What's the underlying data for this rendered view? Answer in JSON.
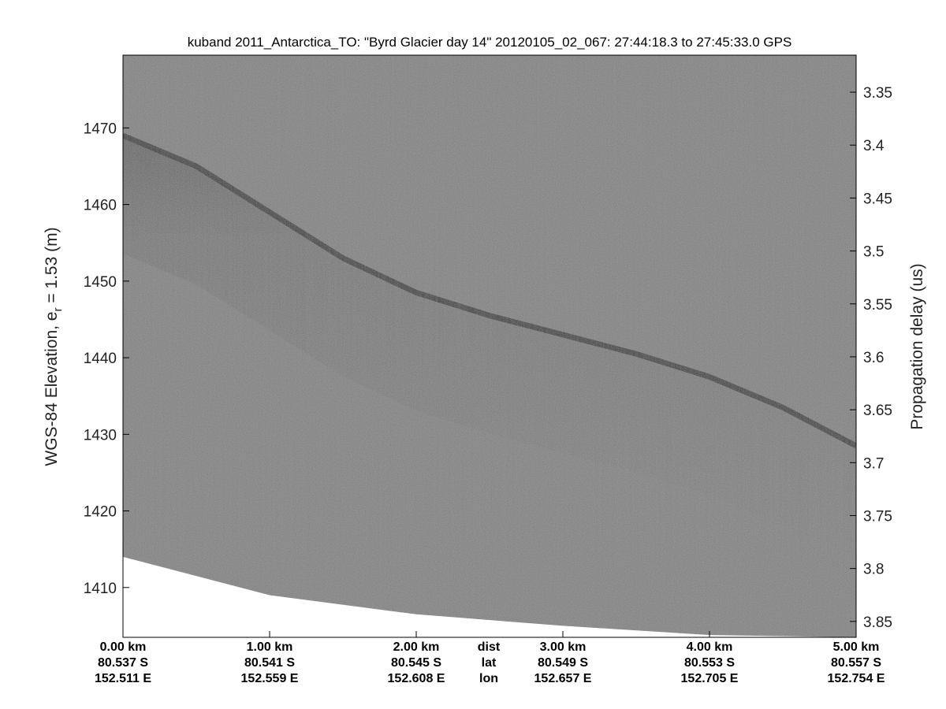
{
  "chart_data": {
    "type": "heatmap",
    "title": "kuband 2011_Antarctica_TO: \"Byrd Glacier day 14\"  20120105_02_067: 27:44:18.3 to 27:45:33.0 GPS",
    "ylabel_prefix": "WGS-84 Elevation, e",
    "ylabel_sub": "r",
    "ylabel_suffix": " = 1.53 (m)",
    "y2label": "Propagation delay (us)",
    "ylim": [
      1403.5,
      1479.5
    ],
    "y_ticks": [
      1410,
      1420,
      1430,
      1440,
      1450,
      1460,
      1470
    ],
    "y2lim": [
      3.865,
      3.315
    ],
    "y2_ticks": [
      3.35,
      3.4,
      3.45,
      3.5,
      3.55,
      3.6,
      3.65,
      3.7,
      3.75,
      3.8,
      3.85
    ],
    "y2_tick_labels": [
      "3.35",
      "3.4",
      "3.45",
      "3.5",
      "3.55",
      "3.6",
      "3.65",
      "3.7",
      "3.75",
      "3.8",
      "3.85"
    ],
    "xlim_km": [
      0,
      5
    ],
    "bottom_axis": {
      "row_names": [
        "dist",
        "lat",
        "lon"
      ],
      "ticks": [
        {
          "km": 0,
          "dist": "0.00 km",
          "lat": "80.537 S",
          "lon": "152.511 E"
        },
        {
          "km": 1,
          "dist": "1.00 km",
          "lat": "80.541 S",
          "lon": "152.559 E"
        },
        {
          "km": 2,
          "dist": "2.00 km",
          "lat": "80.545 S",
          "lon": "152.608 E"
        },
        {
          "km": 3,
          "dist": "3.00 km",
          "lat": "80.549 S",
          "lon": "152.657 E"
        },
        {
          "km": 4,
          "dist": "4.00 km",
          "lat": "80.553 S",
          "lon": "152.705 E"
        },
        {
          "km": 5,
          "dist": "5.00 km",
          "lat": "80.557 S",
          "lon": "152.754 E"
        }
      ]
    },
    "surface_km": [
      0,
      0.5,
      1.0,
      1.5,
      2.0,
      2.5,
      3.0,
      3.5,
      4.0,
      4.5,
      5.0
    ],
    "surface_elev": [
      1469,
      1465,
      1459,
      1453,
      1448.5,
      1445.5,
      1443,
      1440.5,
      1437.5,
      1433.5,
      1428.5
    ],
    "data_floor_km": [
      0,
      1.0,
      2.0,
      3.0,
      4.0,
      5.0
    ],
    "data_floor_elev": [
      1414,
      1409,
      1406.5,
      1405,
      1403.8,
      1403.5
    ],
    "colormap": [
      "#606060",
      "#8a8a8a",
      "#222222"
    ]
  }
}
